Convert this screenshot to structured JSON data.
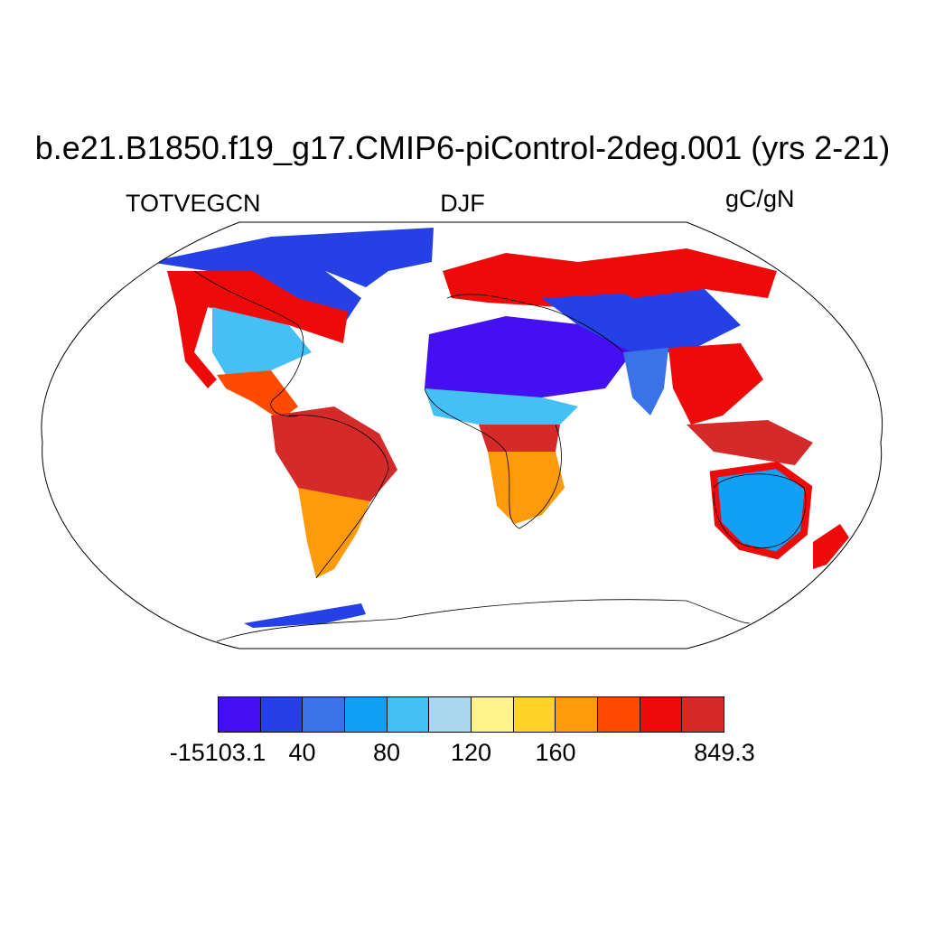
{
  "title": "b.e21.B1850.f19_g17.CMIP6-piControl-2deg.001 (yrs 2-21)",
  "left_label": "TOTVEGCN",
  "center_label": "DJF",
  "right_label": "gC/gN",
  "colorbar": {
    "colors": [
      "#4410f2",
      "#2541e6",
      "#3a73e8",
      "#11a0f5",
      "#43c0f5",
      "#a9d8ee",
      "#fff48a",
      "#ffd32a",
      "#ff9a0a",
      "#ff4a00",
      "#ef0a0a",
      "#d42a2a"
    ],
    "labels": [
      {
        "index": 0,
        "text": "-15103.1"
      },
      {
        "index": 2,
        "text": "40"
      },
      {
        "index": 4,
        "text": "80"
      },
      {
        "index": 6,
        "text": "120"
      },
      {
        "index": 8,
        "text": "160"
      },
      {
        "index": 11,
        "text": "849.3"
      }
    ]
  },
  "map_regions": [
    {
      "name": "greenland-region",
      "level": 1
    },
    {
      "name": "canada-region",
      "level": 1
    },
    {
      "name": "western-north-america-region",
      "level": 10
    },
    {
      "name": "us-interior-region",
      "level": 4
    },
    {
      "name": "central-america-region",
      "level": 9
    },
    {
      "name": "amazon-region",
      "level": 11
    },
    {
      "name": "southern-south-america-region",
      "level": 8
    },
    {
      "name": "europe-region",
      "level": 10
    },
    {
      "name": "sahara-region",
      "level": 0
    },
    {
      "name": "central-asia-region",
      "level": 1
    },
    {
      "name": "siberia-region",
      "level": 10
    },
    {
      "name": "sahel-region",
      "level": 4
    },
    {
      "name": "central-africa-region",
      "level": 11
    },
    {
      "name": "southern-africa-region",
      "level": 8
    },
    {
      "name": "india-region",
      "level": 2
    },
    {
      "name": "southeast-asia-region",
      "level": 10
    },
    {
      "name": "maritime-continent-region",
      "level": 11
    },
    {
      "name": "australia-region",
      "level": 3
    },
    {
      "name": "new-zealand-region",
      "level": 10
    },
    {
      "name": "antarctic-fringe-region",
      "level": 1
    }
  ]
}
